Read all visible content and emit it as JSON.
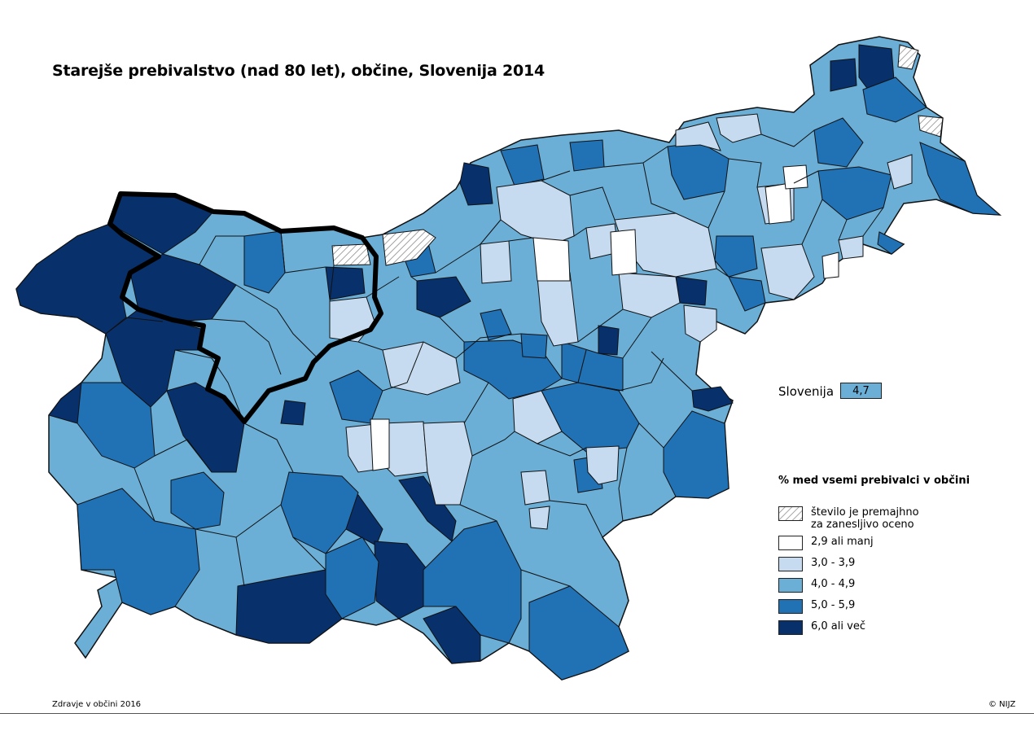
{
  "title": "Starejše prebivalstvo (nad 80 let), občine, Slovenija 2014",
  "national": {
    "label": "Slovenija",
    "value": "4,7",
    "color": "#6baed6"
  },
  "legend": {
    "title": "% med vsemi prebivalci v občini",
    "hatched": {
      "line1": "število je premajhno",
      "line2": "za zanesljivo oceno"
    },
    "classes": [
      {
        "label": "2,9 ali manj",
        "color": "#ffffff"
      },
      {
        "label": "3,0 - 3,9",
        "color": "#c6dbef"
      },
      {
        "label": "4,0 - 4,9",
        "color": "#6baed6"
      },
      {
        "label": "5,0 - 5,9",
        "color": "#2171b5"
      },
      {
        "label": "6,0 ali več",
        "color": "#08306b"
      }
    ]
  },
  "footer": {
    "source": "Zdravje v občini 2016",
    "copyright": "© NIJZ"
  }
}
